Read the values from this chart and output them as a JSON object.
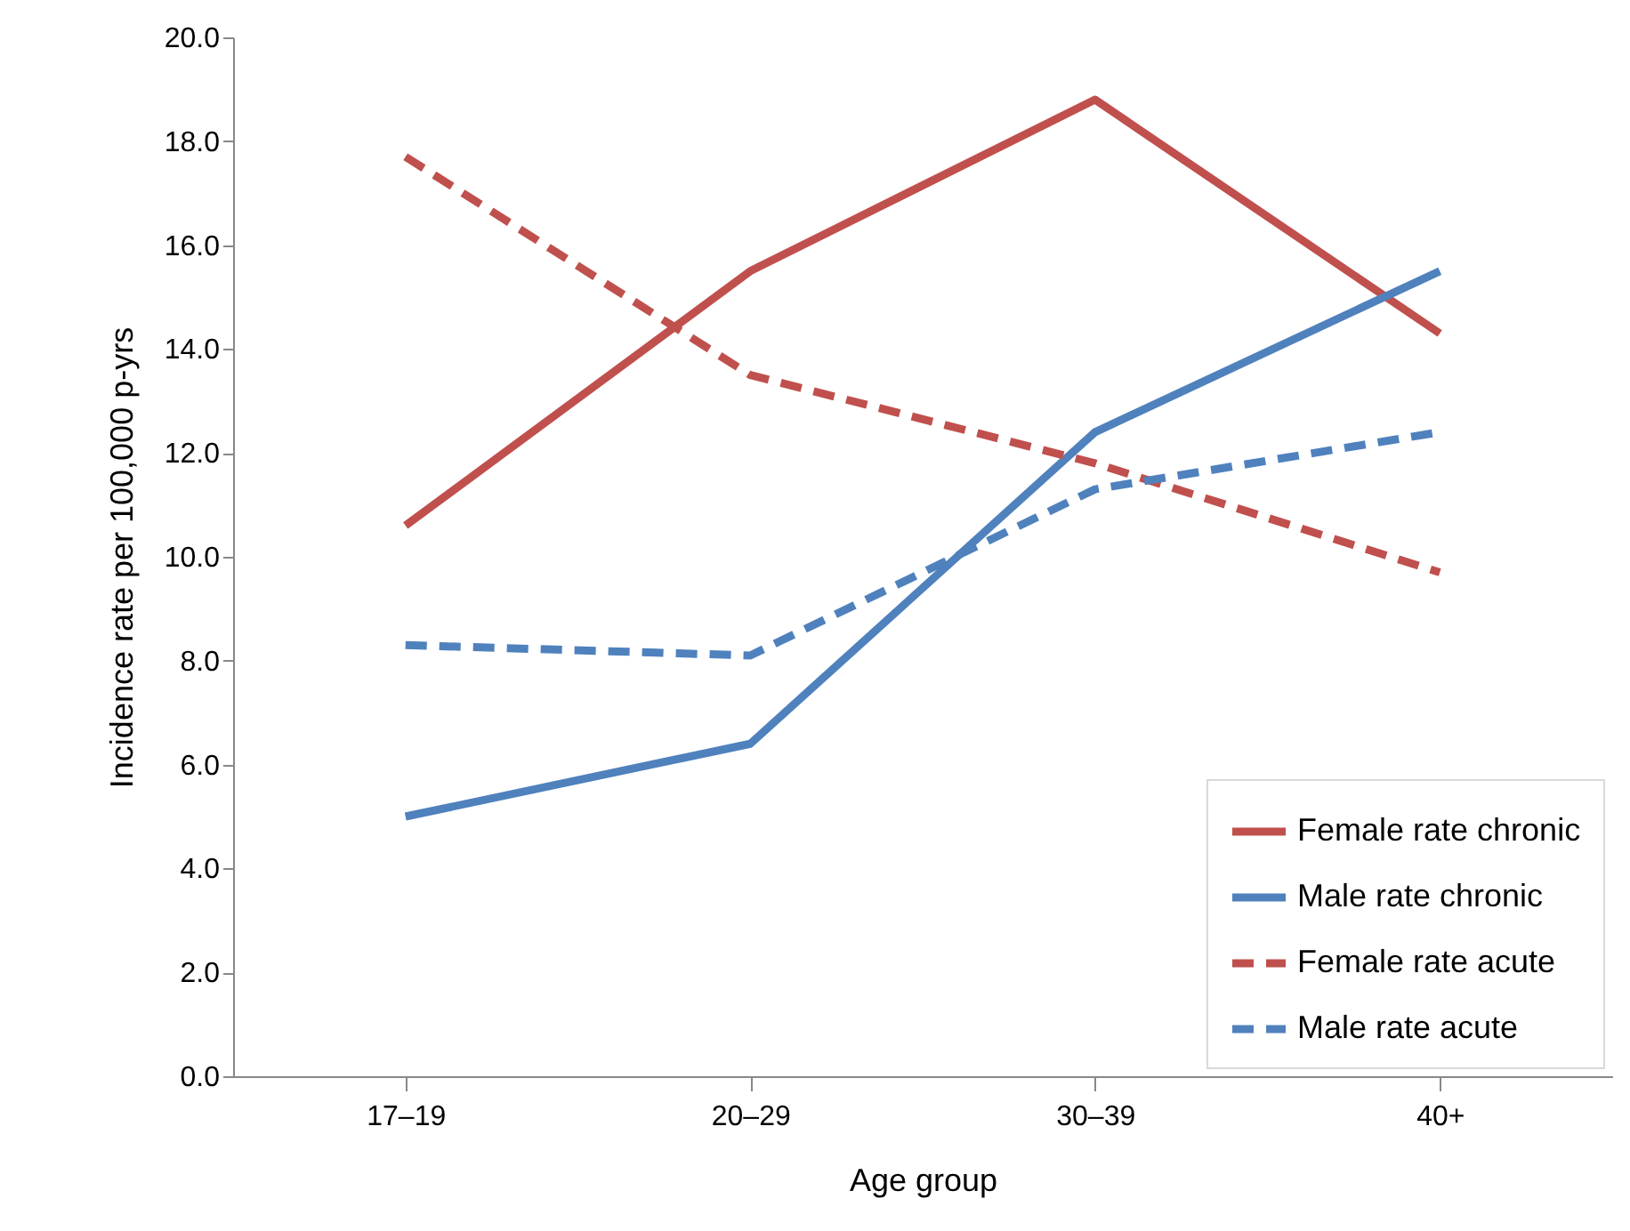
{
  "chart_data": {
    "type": "line",
    "xlabel": "Age group",
    "ylabel": "Incidence rate per 100,000 p-yrs",
    "categories": [
      "17–19",
      "20–29",
      "30–39",
      "40+"
    ],
    "series": [
      {
        "name": "Female rate chronic",
        "color": "#c0504d",
        "line_style": "solid",
        "values": [
          10.6,
          15.5,
          18.8,
          14.3
        ]
      },
      {
        "name": "Male rate chronic",
        "color": "#4f81bd",
        "line_style": "solid",
        "values": [
          5.0,
          6.4,
          12.4,
          15.5
        ]
      },
      {
        "name": "Female rate acute",
        "color": "#c0504d",
        "line_style": "dashed",
        "values": [
          17.7,
          13.5,
          11.8,
          9.7
        ]
      },
      {
        "name": "Male rate acute",
        "color": "#4f81bd",
        "line_style": "dashed",
        "values": [
          8.3,
          8.1,
          11.3,
          12.4
        ]
      }
    ],
    "ylim": [
      0,
      20
    ],
    "yticks": [
      {
        "value": 0,
        "label": "0.0"
      },
      {
        "value": 2,
        "label": "2.0"
      },
      {
        "value": 4,
        "label": "4.0"
      },
      {
        "value": 6,
        "label": "6.0"
      },
      {
        "value": 8,
        "label": "8.0"
      },
      {
        "value": 10,
        "label": "10.0"
      },
      {
        "value": 12,
        "label": "12.0"
      },
      {
        "value": 14,
        "label": "14.0"
      },
      {
        "value": 16,
        "label": "16.0"
      },
      {
        "value": 18,
        "label": "18.0"
      },
      {
        "value": 20,
        "label": "20.0"
      }
    ],
    "grid": false,
    "legend": "bottom right",
    "marker": "none"
  }
}
